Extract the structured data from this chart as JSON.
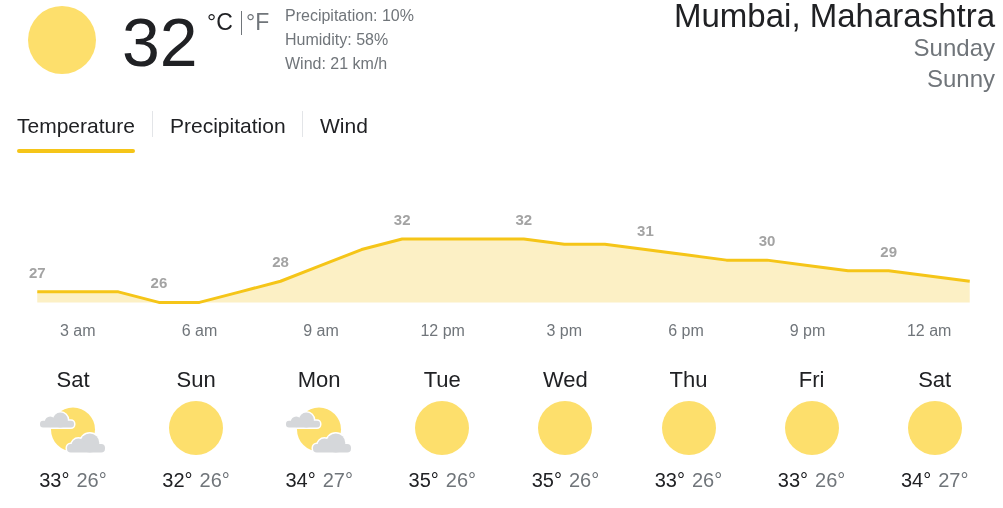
{
  "chart_data": [
    {
      "type": "other",
      "title": "Mumbai, Maharashtra",
      "subtitle": "Sunday",
      "annotations": [
        "Sunny",
        "32",
        "°C",
        "°F",
        "Precipitation: 10%",
        "Humidity: 58%",
        "Wind: 21 km/h"
      ]
    },
    {
      "type": "area",
      "annotations": [
        "Temperature",
        "Precipitation",
        "Wind"
      ],
      "categories": [
        null,
        "3 am",
        null,
        null,
        "6 am",
        null,
        null,
        "9 am",
        null,
        null,
        "12 pm",
        null,
        null,
        "3 pm",
        null,
        null,
        "6 pm",
        null,
        null,
        "9 pm",
        null,
        null,
        "12 am",
        null
      ],
      "values": [
        27,
        27,
        27,
        26,
        26,
        27,
        28,
        29.5,
        31,
        32,
        32,
        32,
        32,
        31.5,
        31.5,
        31,
        30.5,
        30,
        30,
        29.5,
        29,
        29,
        28.5,
        28
      ],
      "value_labels": [
        "27",
        null,
        null,
        "26",
        null,
        null,
        "28",
        null,
        null,
        "32",
        null,
        null,
        "32",
        null,
        null,
        "31",
        null,
        null,
        "30",
        null,
        null,
        "29",
        null,
        null
      ],
      "color": "#f5c518",
      "tick_labels": "x"
    },
    {
      "type": "other",
      "categories": [
        "Sat",
        "Sun",
        "Mon",
        "Tue",
        "Wed",
        "Thu",
        "Fri",
        "Sat"
      ],
      "annotations": [
        "33°",
        "26°",
        "32°",
        "26°",
        "34°",
        "27°",
        "35°",
        "26°",
        "35°",
        "26°",
        "33°",
        "26°",
        "33°",
        "26°",
        "34°",
        "27°"
      ]
    }
  ]
}
